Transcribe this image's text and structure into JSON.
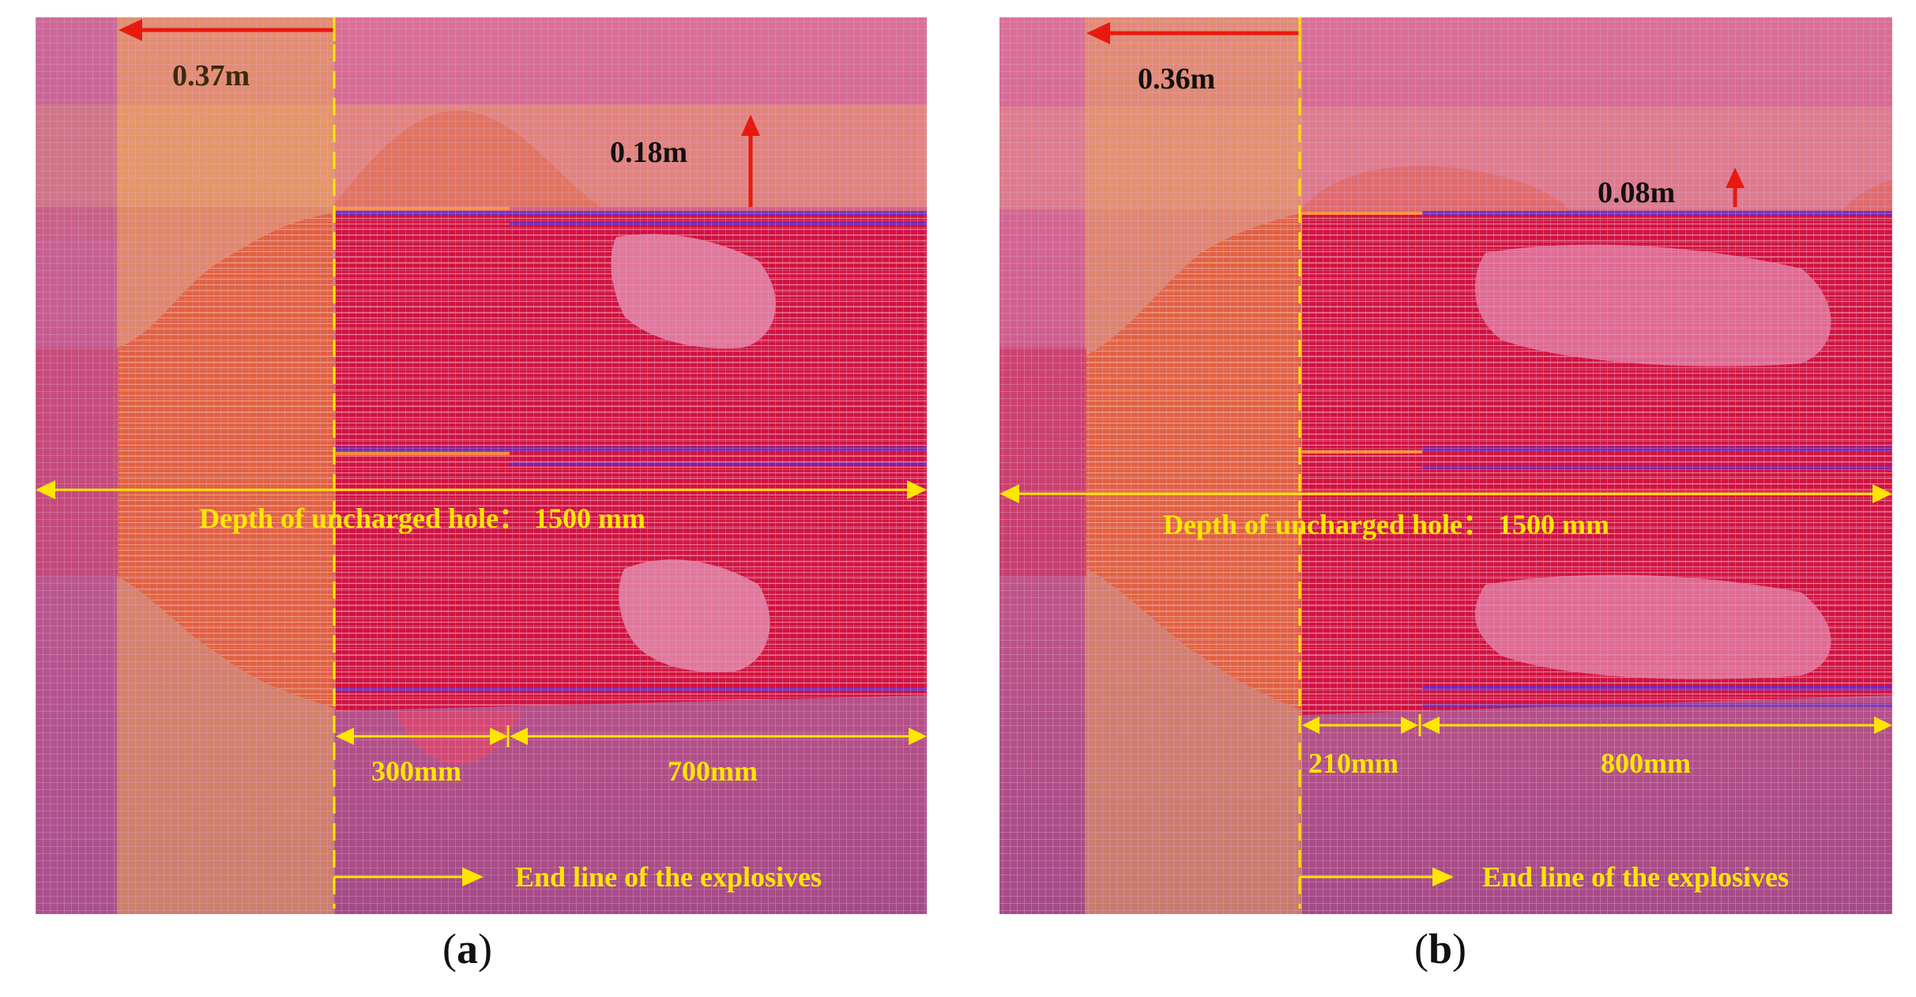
{
  "figure": {
    "panels": [
      {
        "id": "a",
        "caption_open": "(",
        "caption_letter": "a",
        "caption_close": ")",
        "displacement_left": "0.37m",
        "uplift": "0.18m",
        "depth_label": "Depth of uncharged hole： 1500 mm",
        "seg1": "300mm",
        "seg2": "700mm",
        "end_line": "End line of the explosives"
      },
      {
        "id": "b",
        "caption_open": "(",
        "caption_letter": "b",
        "caption_close": ")",
        "displacement_left": "0.36m",
        "uplift": "0.08m",
        "depth_label": "Depth of uncharged hole： 1500 mm",
        "seg1": "210mm",
        "seg2": "800mm",
        "end_line": "End line of the explosives"
      }
    ],
    "colors": {
      "mesh_top": "#d86a8e",
      "mesh_bottom": "#b14c86",
      "band_orange": "#e8a45a",
      "damage_orange": "#e0603f",
      "damage_red": "#d4103e",
      "annotation_yellow": "#ffe600",
      "arrow_red": "#e8190f",
      "crack_blue": "#5a2bd0"
    }
  }
}
